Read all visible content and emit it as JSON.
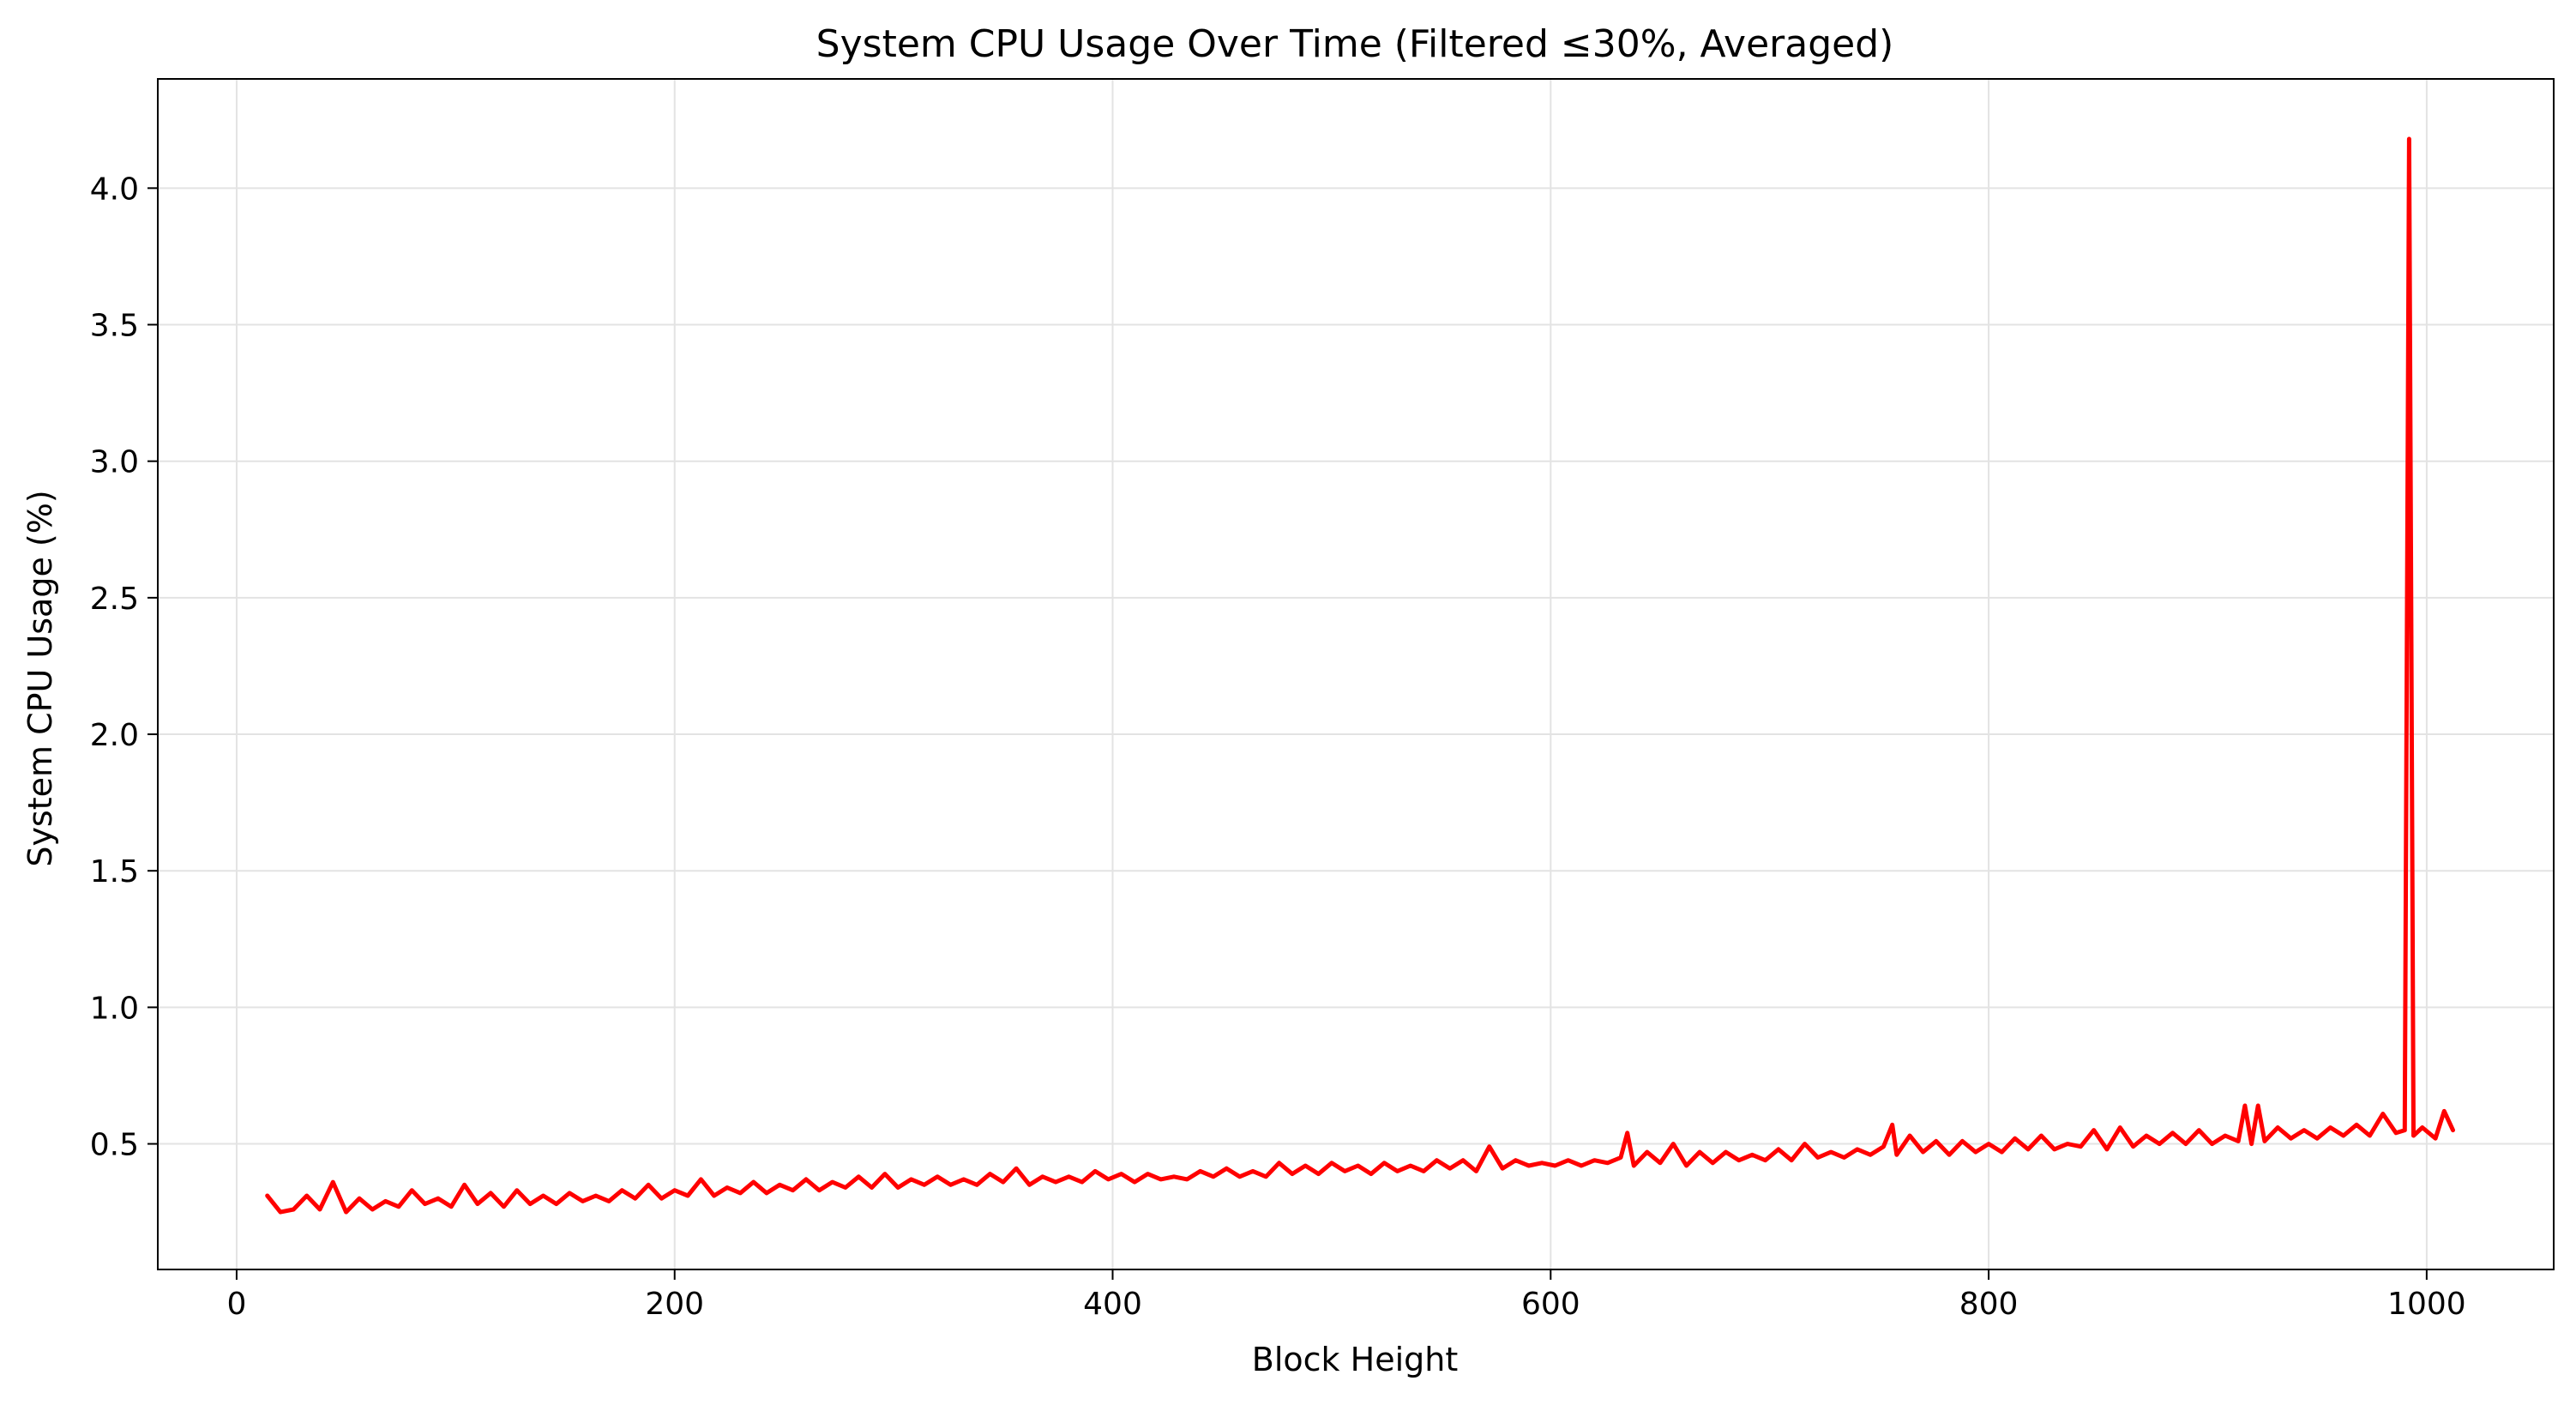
{
  "chart_data": {
    "type": "line",
    "title": "System CPU Usage Over Time (Filtered ≤30%, Averaged)",
    "xlabel": "Block Height",
    "ylabel": "System CPU Usage (%)",
    "xlim": [
      -36,
      1058
    ],
    "ylim": [
      0.04,
      4.4
    ],
    "xticks": [
      0,
      200,
      400,
      600,
      800,
      1000
    ],
    "xtick_labels": [
      "0",
      "200",
      "400",
      "600",
      "800",
      "1000"
    ],
    "yticks": [
      0.5,
      1.0,
      1.5,
      2.0,
      2.5,
      3.0,
      3.5,
      4.0
    ],
    "ytick_labels": [
      "0.5",
      "1.0",
      "1.5",
      "2.0",
      "2.5",
      "3.0",
      "3.5",
      "4.0"
    ],
    "grid": true,
    "series": [
      {
        "color": "#ff0000",
        "x": [
          14,
          20,
          26,
          32,
          38,
          44,
          50,
          56,
          62,
          68,
          74,
          80,
          86,
          92,
          98,
          104,
          110,
          116,
          122,
          128,
          134,
          140,
          146,
          152,
          158,
          164,
          170,
          176,
          182,
          188,
          194,
          200,
          206,
          212,
          218,
          224,
          230,
          236,
          242,
          248,
          254,
          260,
          266,
          272,
          278,
          284,
          290,
          296,
          302,
          308,
          314,
          320,
          326,
          332,
          338,
          344,
          350,
          356,
          362,
          368,
          374,
          380,
          386,
          392,
          398,
          404,
          410,
          416,
          422,
          428,
          434,
          440,
          446,
          452,
          458,
          464,
          470,
          476,
          482,
          488,
          494,
          500,
          506,
          512,
          518,
          524,
          530,
          536,
          542,
          548,
          554,
          560,
          566,
          572,
          578,
          584,
          590,
          596,
          602,
          608,
          614,
          620,
          626,
          632,
          635,
          638,
          644,
          650,
          656,
          662,
          668,
          674,
          680,
          686,
          692,
          698,
          704,
          710,
          716,
          722,
          728,
          734,
          740,
          746,
          752,
          756,
          758,
          764,
          770,
          776,
          782,
          788,
          794,
          800,
          806,
          812,
          818,
          824,
          830,
          836,
          842,
          848,
          854,
          860,
          866,
          872,
          878,
          884,
          890,
          896,
          902,
          908,
          914,
          917,
          920,
          923,
          926,
          932,
          938,
          944,
          950,
          956,
          962,
          968,
          974,
          980,
          986,
          990,
          992,
          994,
          998,
          1004,
          1008,
          1012
        ],
        "y": [
          0.31,
          0.25,
          0.26,
          0.31,
          0.26,
          0.36,
          0.25,
          0.3,
          0.26,
          0.29,
          0.27,
          0.33,
          0.28,
          0.3,
          0.27,
          0.35,
          0.28,
          0.32,
          0.27,
          0.33,
          0.28,
          0.31,
          0.28,
          0.32,
          0.29,
          0.31,
          0.29,
          0.33,
          0.3,
          0.35,
          0.3,
          0.33,
          0.31,
          0.37,
          0.31,
          0.34,
          0.32,
          0.36,
          0.32,
          0.35,
          0.33,
          0.37,
          0.33,
          0.36,
          0.34,
          0.38,
          0.34,
          0.39,
          0.34,
          0.37,
          0.35,
          0.38,
          0.35,
          0.37,
          0.35,
          0.39,
          0.36,
          0.41,
          0.35,
          0.38,
          0.36,
          0.38,
          0.36,
          0.4,
          0.37,
          0.39,
          0.36,
          0.39,
          0.37,
          0.38,
          0.37,
          0.4,
          0.38,
          0.41,
          0.38,
          0.4,
          0.38,
          0.43,
          0.39,
          0.42,
          0.39,
          0.43,
          0.4,
          0.42,
          0.39,
          0.43,
          0.4,
          0.42,
          0.4,
          0.44,
          0.41,
          0.44,
          0.4,
          0.49,
          0.41,
          0.44,
          0.42,
          0.43,
          0.42,
          0.44,
          0.42,
          0.44,
          0.43,
          0.45,
          0.54,
          0.42,
          0.47,
          0.43,
          0.5,
          0.42,
          0.47,
          0.43,
          0.47,
          0.44,
          0.46,
          0.44,
          0.48,
          0.44,
          0.5,
          0.45,
          0.47,
          0.45,
          0.48,
          0.46,
          0.49,
          0.57,
          0.46,
          0.53,
          0.47,
          0.51,
          0.46,
          0.51,
          0.47,
          0.5,
          0.47,
          0.52,
          0.48,
          0.53,
          0.48,
          0.5,
          0.49,
          0.55,
          0.48,
          0.56,
          0.49,
          0.53,
          0.5,
          0.54,
          0.5,
          0.55,
          0.5,
          0.53,
          0.51,
          0.64,
          0.5,
          0.64,
          0.51,
          0.56,
          0.52,
          0.55,
          0.52,
          0.56,
          0.53,
          0.57,
          0.53,
          0.61,
          0.54,
          0.55,
          4.18,
          0.53,
          0.56,
          0.52,
          0.62,
          0.55
        ]
      }
    ]
  }
}
